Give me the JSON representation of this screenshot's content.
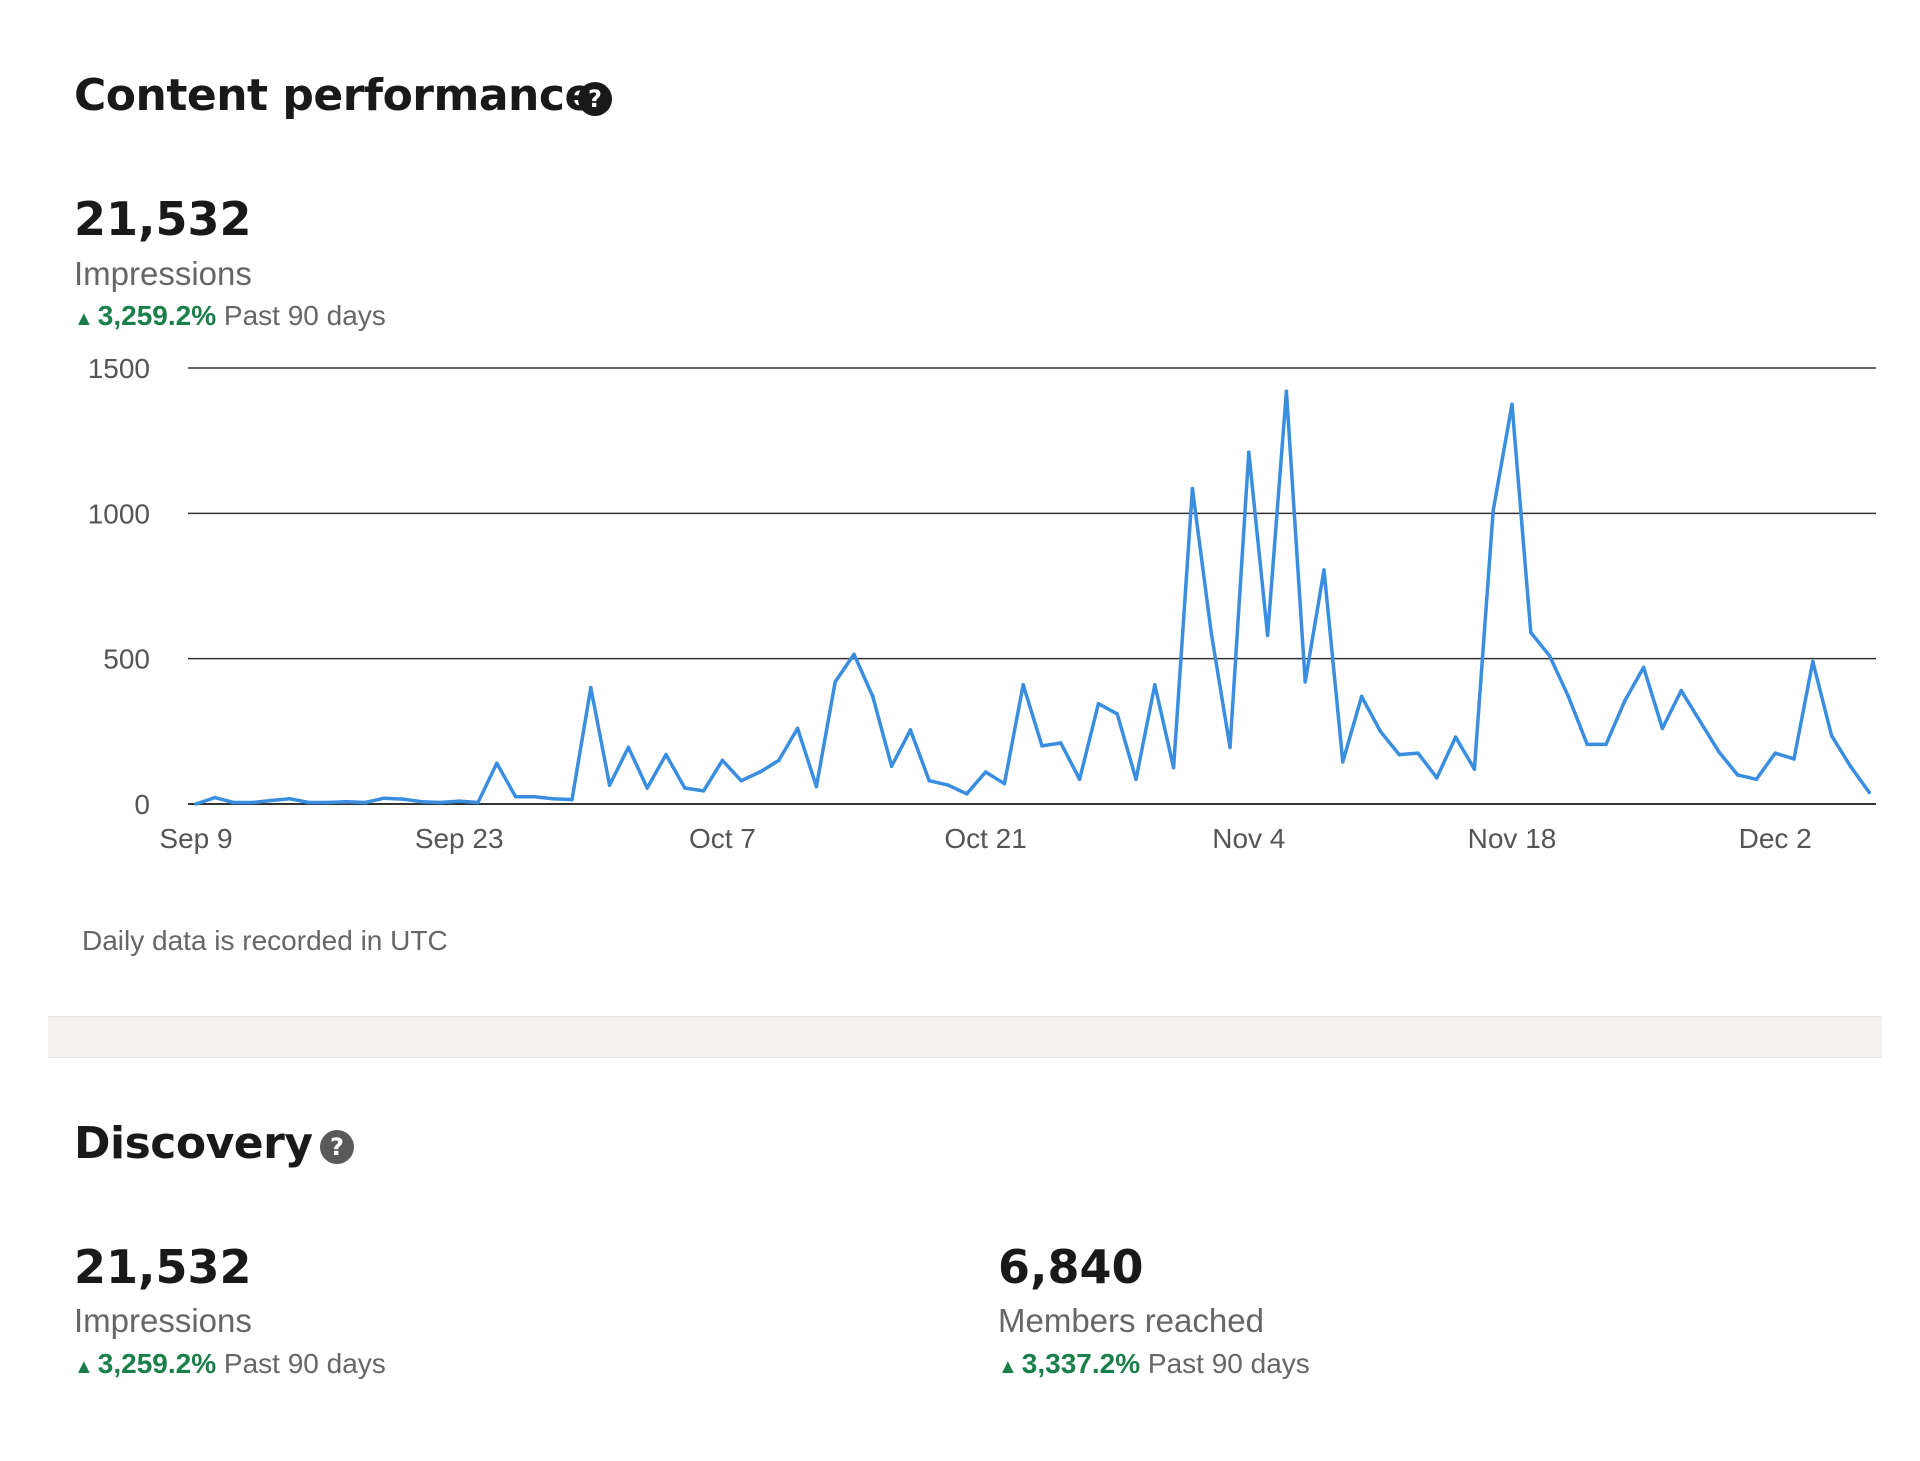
{
  "content_performance": {
    "title": "Content performance",
    "help_icon": "question-circle-icon",
    "impressions_value": "21,532",
    "impressions_label": "Impressions",
    "trend_change": "3,259.2%",
    "trend_period": "Past 90 days",
    "footnote": "Daily data is recorded in UTC"
  },
  "discovery": {
    "title": "Discovery",
    "help_icon": "question-circle-icon",
    "impressions": {
      "value": "21,532",
      "label": "Impressions",
      "change": "3,259.2%",
      "period": "Past 90 days"
    },
    "members": {
      "value": "6,840",
      "label": "Members reached",
      "change": "3,337.2%",
      "period": "Past 90 days"
    }
  },
  "colors": {
    "line": "#3a8ee0",
    "trend_up": "#1a7f4b",
    "gridline": "#333333"
  },
  "chart_data": {
    "type": "line",
    "title": "",
    "xlabel": "",
    "ylabel": "",
    "ylim": [
      0,
      1500
    ],
    "yticks": [
      0,
      500,
      1000,
      1500
    ],
    "xtick_labels": [
      "Sep 9",
      "Sep 23",
      "Oct 7",
      "Oct 21",
      "Nov 4",
      "Nov 18",
      "Dec 2"
    ],
    "grid": true,
    "start_date": "Sep 9",
    "series": [
      {
        "values": [
          0,
          22,
          5,
          5,
          12,
          18,
          5,
          5,
          8,
          5,
          20,
          17,
          8,
          5,
          10,
          5,
          140,
          25,
          25,
          18,
          15,
          400,
          65,
          195,
          55,
          170,
          55,
          45,
          150,
          80,
          110,
          150,
          260,
          60,
          420,
          515,
          370,
          130,
          255,
          80,
          65,
          35,
          110,
          70,
          410,
          200,
          210,
          85,
          345,
          310,
          85,
          410,
          125,
          1085,
          590,
          195,
          1210,
          580,
          1420,
          420,
          805,
          145,
          370,
          250,
          170,
          175,
          90,
          230,
          120,
          1010,
          1375,
          590,
          510,
          370,
          205,
          205,
          355,
          470,
          260,
          390,
          285,
          180,
          100,
          85,
          175,
          155,
          490,
          235,
          130,
          40
        ]
      }
    ]
  }
}
